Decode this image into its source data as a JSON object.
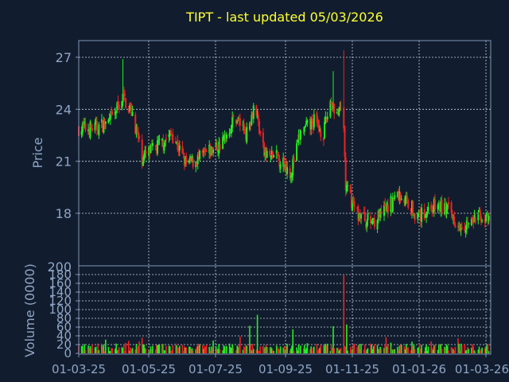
{
  "colors": {
    "background": "#111d2e",
    "axis": "#7f95b5",
    "grid": "#c8d2e0",
    "text": "#8fa4c4",
    "title": "#ffff33",
    "up": "#22ee22",
    "down": "#ee2222"
  },
  "chart_data": [
    {
      "type": "candlestick",
      "title": "TIPT - last updated 05/03/2026",
      "ylabel": "Price",
      "ylim": [
        18,
        27
      ],
      "yticks": [
        "27",
        "24",
        "21",
        "18"
      ],
      "grid": true,
      "x_start": "2025-01-03",
      "x_end": "2026-01-03",
      "x_ticks": [
        "01-03-25",
        "01-05-25",
        "01-07-25",
        "01-09-25",
        "01-11-25",
        "01-01-26",
        "01-03-26"
      ],
      "price_path": [
        {
          "x": "2025-01-03",
          "y": 22.9
        },
        {
          "x": "2025-01-20",
          "y": 22.9
        },
        {
          "x": "2025-02-05",
          "y": 23.3
        },
        {
          "x": "2025-02-18",
          "y": 24.7
        },
        {
          "x": "2025-02-28",
          "y": 23.8
        },
        {
          "x": "2025-03-10",
          "y": 21.2
        },
        {
          "x": "2025-03-25",
          "y": 21.8
        },
        {
          "x": "2025-04-10",
          "y": 22.6
        },
        {
          "x": "2025-04-25",
          "y": 20.8
        },
        {
          "x": "2025-05-10",
          "y": 21.2
        },
        {
          "x": "2025-06-01",
          "y": 22.0
        },
        {
          "x": "2025-06-15",
          "y": 23.6
        },
        {
          "x": "2025-06-27",
          "y": 22.6
        },
        {
          "x": "2025-07-05",
          "y": 24.4
        },
        {
          "x": "2025-07-15",
          "y": 21.4
        },
        {
          "x": "2025-07-30",
          "y": 21.2
        },
        {
          "x": "2025-08-12",
          "y": 20.4
        },
        {
          "x": "2025-08-22",
          "y": 22.6
        },
        {
          "x": "2025-09-05",
          "y": 23.3
        },
        {
          "x": "2025-09-15",
          "y": 22.6
        },
        {
          "x": "2025-09-22",
          "y": 24.5
        },
        {
          "x": "2025-10-01",
          "y": 23.6
        },
        {
          "x": "2025-10-05",
          "y": 24.6
        },
        {
          "x": "2025-10-08",
          "y": 19.5
        },
        {
          "x": "2025-10-20",
          "y": 18.0
        },
        {
          "x": "2025-11-01",
          "y": 17.5
        },
        {
          "x": "2025-11-15",
          "y": 17.9
        },
        {
          "x": "2025-12-01",
          "y": 19.1
        },
        {
          "x": "2025-12-15",
          "y": 18.5
        },
        {
          "x": "2025-12-22",
          "y": 17.7
        },
        {
          "x": "2026-01-05",
          "y": 18.4
        },
        {
          "x": "2026-01-20",
          "y": 18.3
        },
        {
          "x": "2026-02-01",
          "y": 17.5
        },
        {
          "x": "2026-02-15",
          "y": 17.4
        },
        {
          "x": "2026-02-25",
          "y": 17.9
        },
        {
          "x": "2026-03-05",
          "y": 17.5
        },
        {
          "x": "2026-03-15",
          "y": 16.8
        }
      ],
      "spikes": [
        {
          "x": "2025-02-18",
          "high": 26.9
        },
        {
          "x": "2025-09-25",
          "high": 26.2
        },
        {
          "x": "2025-10-06",
          "high": 27.4
        }
      ]
    },
    {
      "type": "bar",
      "ylabel": "Volume (0000)",
      "ylim": [
        0,
        180
      ],
      "yticks": [
        "180",
        "160",
        "140",
        "120",
        "100",
        "80",
        "60",
        "40",
        "20",
        "0"
      ],
      "grid": true,
      "spikes": [
        {
          "x": "2025-02-16",
          "value": 66
        },
        {
          "x": "2025-06-30",
          "value": 63
        },
        {
          "x": "2025-07-08",
          "value": 88
        },
        {
          "x": "2025-08-14",
          "value": 55
        },
        {
          "x": "2025-09-25",
          "value": 62
        },
        {
          "x": "2025-10-06",
          "value": 178
        },
        {
          "x": "2025-10-09",
          "value": 66
        },
        {
          "x": "2026-01-03",
          "value": 60
        }
      ],
      "base_volume": 16
    }
  ],
  "overlap_label": "200"
}
